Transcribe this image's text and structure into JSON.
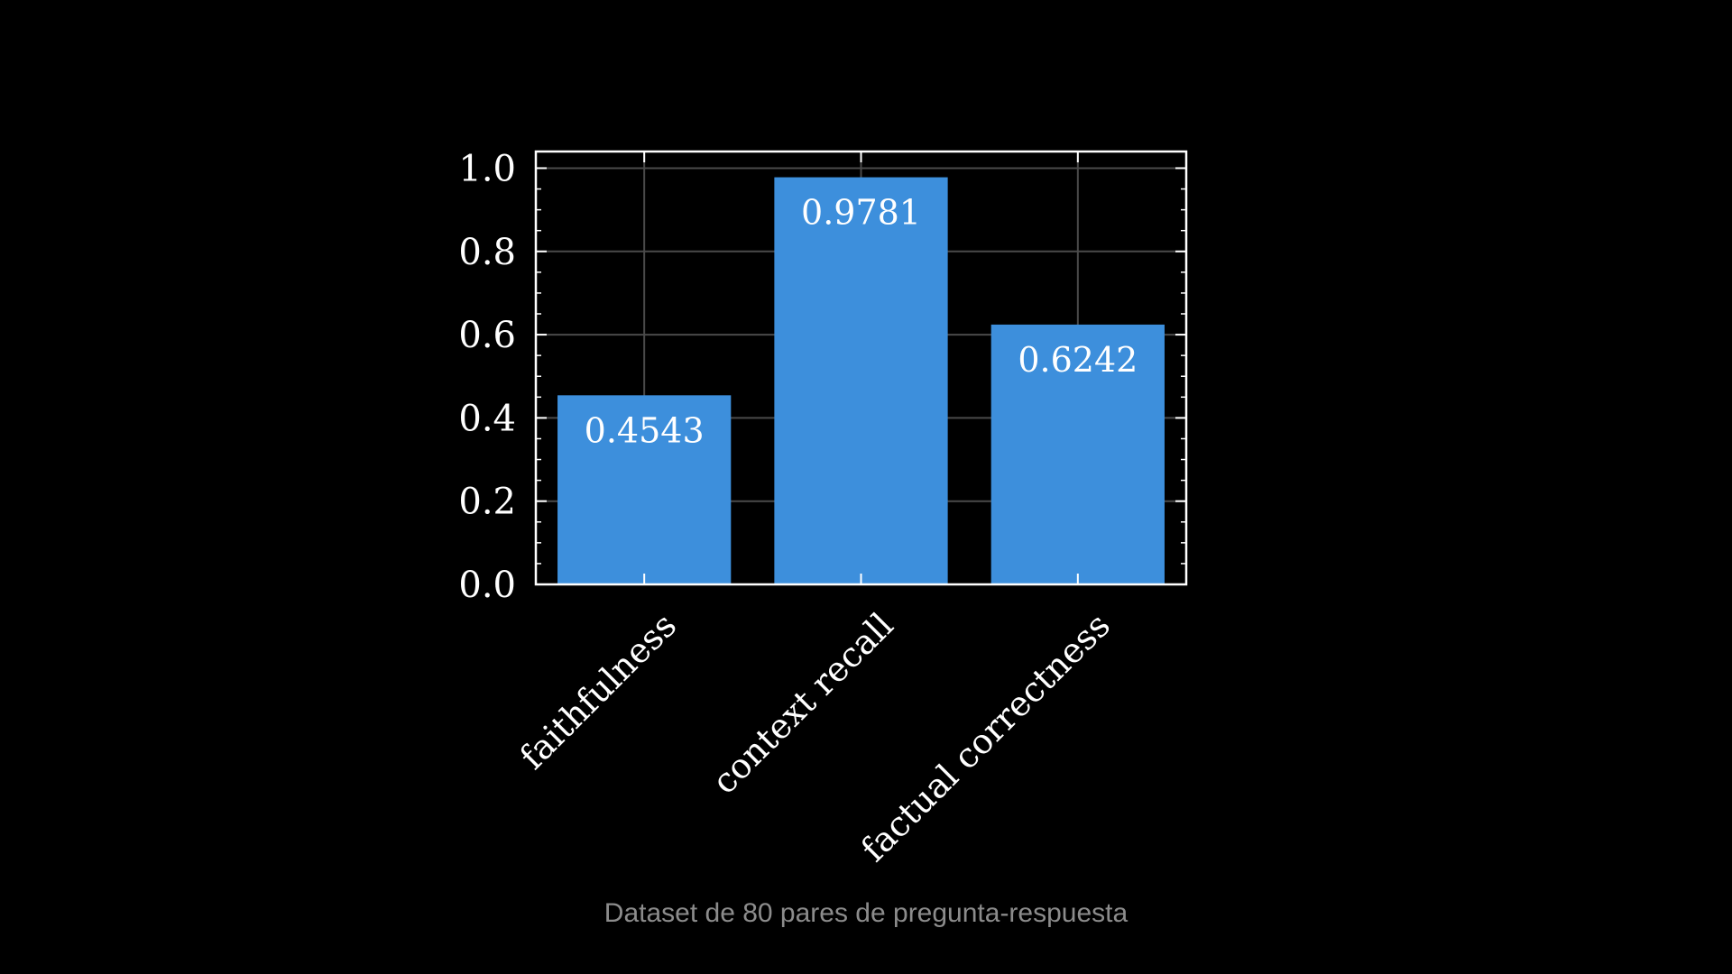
{
  "chart_data": {
    "type": "bar",
    "categories": [
      "faithfulness",
      "context recall",
      "factual correctness"
    ],
    "values": [
      0.4543,
      0.9781,
      0.6242
    ],
    "value_labels": [
      "0.4543",
      "0.9781",
      "0.6242"
    ],
    "ylim": [
      0,
      1.04
    ],
    "yticks": [
      0.0,
      0.2,
      0.4,
      0.6,
      0.8,
      1.0
    ],
    "ytick_labels": [
      "0.0",
      "0.2",
      "0.4",
      "0.6",
      "0.8",
      "1.0"
    ],
    "grid": true,
    "bar_color": "#3d8fdc",
    "background": "#000000",
    "axis_color": "#ffffff",
    "grid_color": "#4a4a4a"
  },
  "caption": "Dataset de 80 pares de pregunta-respuesta"
}
